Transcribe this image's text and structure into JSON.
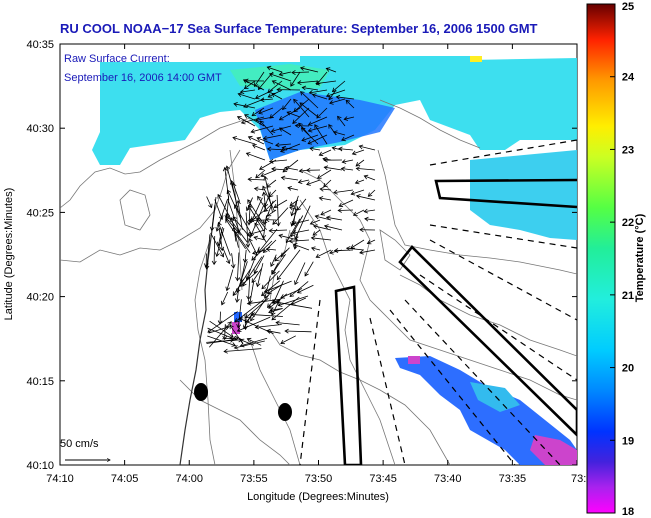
{
  "title": "RU COOL  NOAA−17  Sea Surface Temperature:  September 16, 2006 1500 GMT",
  "current_label": "Raw Surface Current:",
  "current_time": "September 16, 2006 14:00 GMT",
  "scale_label": "50 cm/s",
  "xlabel": "Longitude (Degrees:Minutes)",
  "ylabel": "Latitude (Degrees:Minutes)",
  "colorbar_label": "Temperature (°C)",
  "x_ticks": [
    "74:10",
    "74:05",
    "74:00",
    "73:55",
    "73:50",
    "73:45",
    "73:40",
    "73:35",
    "73:3"
  ],
  "y_ticks": [
    "40:35",
    "40:30",
    "40:25",
    "40:20",
    "40:15",
    "40:10"
  ],
  "colorbar_ticks": [
    "25",
    "24",
    "23",
    "22",
    "21",
    "20",
    "19",
    "18"
  ],
  "colors": {
    "title": "#1a1ab8",
    "sst_cyan": "#33ddee",
    "sst_blue": "#2266ff",
    "sst_magenta": "#cc44cc"
  }
}
